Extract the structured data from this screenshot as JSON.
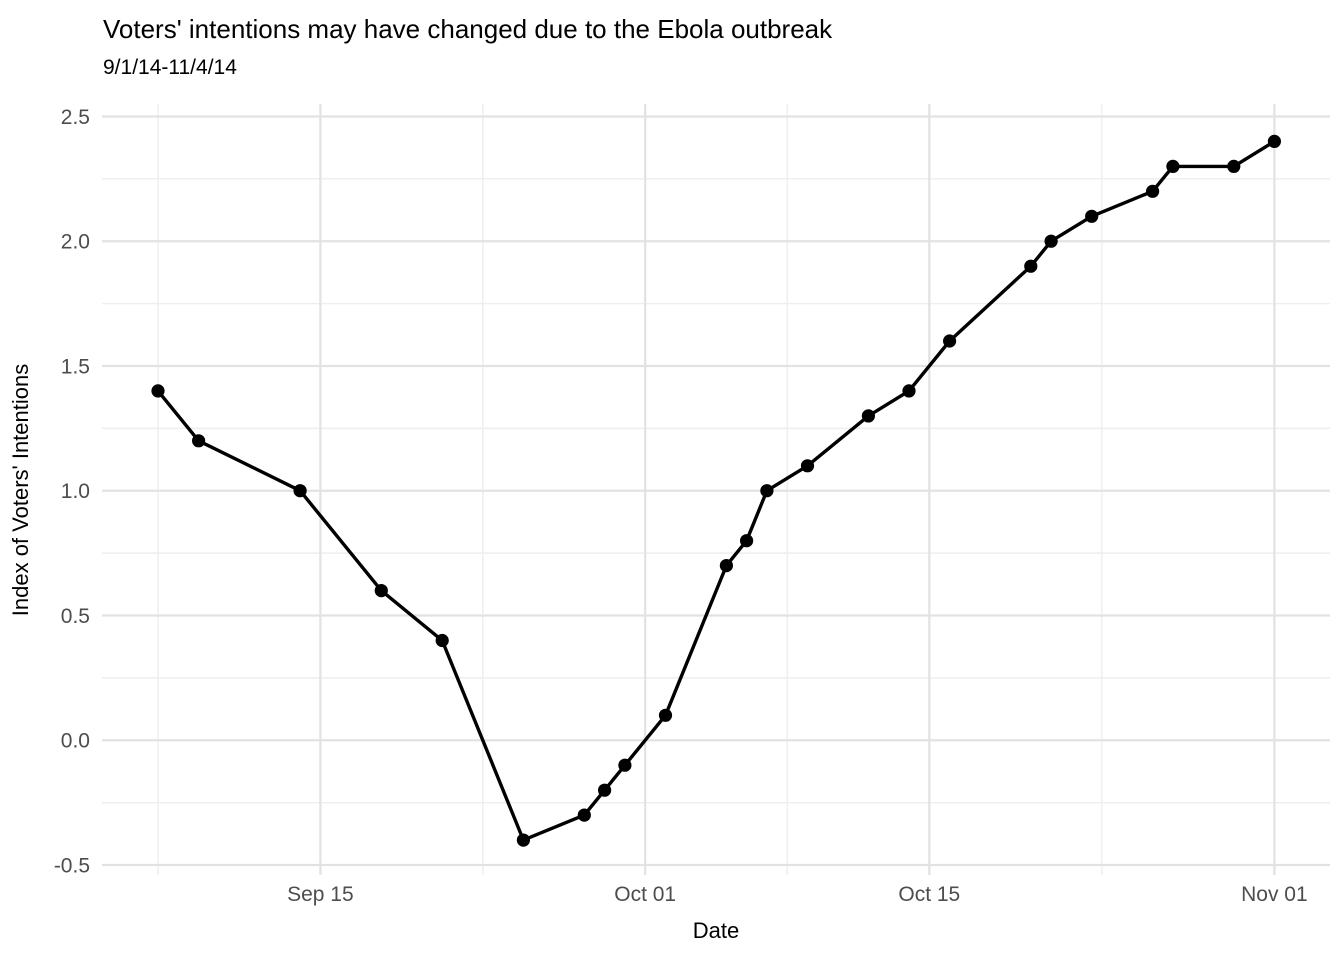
{
  "chart_data": {
    "type": "line",
    "title": "Voters' intentions may have changed due to the Ebola outbreak",
    "subtitle": "9/1/14-11/4/14",
    "xlabel": "Date",
    "ylabel": "Index of Voters' Intentions",
    "series": [
      {
        "name": "Index of Voters' Intentions",
        "x": [
          "2014-09-07",
          "2014-09-09",
          "2014-09-14",
          "2014-09-18",
          "2014-09-21",
          "2014-09-25",
          "2014-09-28",
          "2014-09-29",
          "2014-09-30",
          "2014-10-02",
          "2014-10-05",
          "2014-10-06",
          "2014-10-07",
          "2014-10-09",
          "2014-10-12",
          "2014-10-14",
          "2014-10-16",
          "2014-10-20",
          "2014-10-21",
          "2014-10-23",
          "2014-10-26",
          "2014-10-27",
          "2014-10-30",
          "2014-11-01"
        ],
        "y": [
          1.4,
          1.2,
          1.0,
          0.6,
          0.4,
          -0.4,
          -0.3,
          -0.2,
          -0.1,
          0.1,
          0.7,
          0.8,
          1.0,
          1.1,
          1.3,
          1.4,
          1.6,
          1.9,
          2.0,
          2.1,
          2.2,
          2.3,
          2.3,
          2.4
        ]
      }
    ],
    "x_ticks": [
      {
        "date": "2014-09-15",
        "label": "Sep 15"
      },
      {
        "date": "2014-10-01",
        "label": "Oct 01"
      },
      {
        "date": "2014-10-15",
        "label": "Oct 15"
      },
      {
        "date": "2014-11-01",
        "label": "Nov 01"
      }
    ],
    "x_minor_day_offsets": [
      0,
      16,
      31,
      46.5
    ],
    "y_ticks": [
      {
        "value": -0.5,
        "label": "-0.5"
      },
      {
        "value": 0.0,
        "label": "0.0"
      },
      {
        "value": 0.5,
        "label": "0.5"
      },
      {
        "value": 1.0,
        "label": "1.0"
      },
      {
        "value": 1.5,
        "label": "1.5"
      },
      {
        "value": 2.0,
        "label": "2.0"
      },
      {
        "value": 2.5,
        "label": "2.5"
      }
    ],
    "y_minor": [
      -0.25,
      0.25,
      0.75,
      1.25,
      1.75,
      2.25
    ],
    "xlim_days": [
      -2.76,
      57.74
    ],
    "ylim": [
      -0.54,
      2.55
    ],
    "grid": "major+minor horizontal and vertical, on",
    "legend_position": "none",
    "marker": "filled-circle",
    "colors": {
      "background": "#ffffff",
      "line": "#000000",
      "point": "#000000",
      "grid_major": "#e2e2e2",
      "grid_minor": "#eeeeee",
      "tick_text": "#4d4d4d",
      "title_text": "#000000"
    }
  }
}
